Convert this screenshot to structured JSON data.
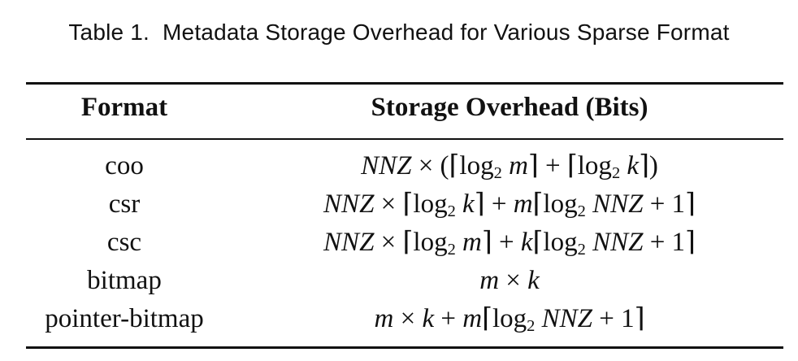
{
  "caption": {
    "label": "Table 1.",
    "title": "Metadata Storage Overhead for Various Sparse Format"
  },
  "table": {
    "headers": [
      "Format",
      "Storage Overhead (Bits)"
    ],
    "rows": [
      {
        "format": "coo",
        "overhead": "NNZ × (⌈log₂ m⌉ + ⌈log₂ k⌉)"
      },
      {
        "format": "csr",
        "overhead": "NNZ × ⌈log₂ k⌉ + m⌈log₂ NNZ + 1⌉"
      },
      {
        "format": "csc",
        "overhead": "NNZ × ⌈log₂ m⌉ + k⌈log₂ NNZ + 1⌉"
      },
      {
        "format": "bitmap",
        "overhead": "m × k"
      },
      {
        "format": "pointer-bitmap",
        "overhead": "m × k + m⌈log₂ NNZ + 1⌉"
      }
    ]
  }
}
